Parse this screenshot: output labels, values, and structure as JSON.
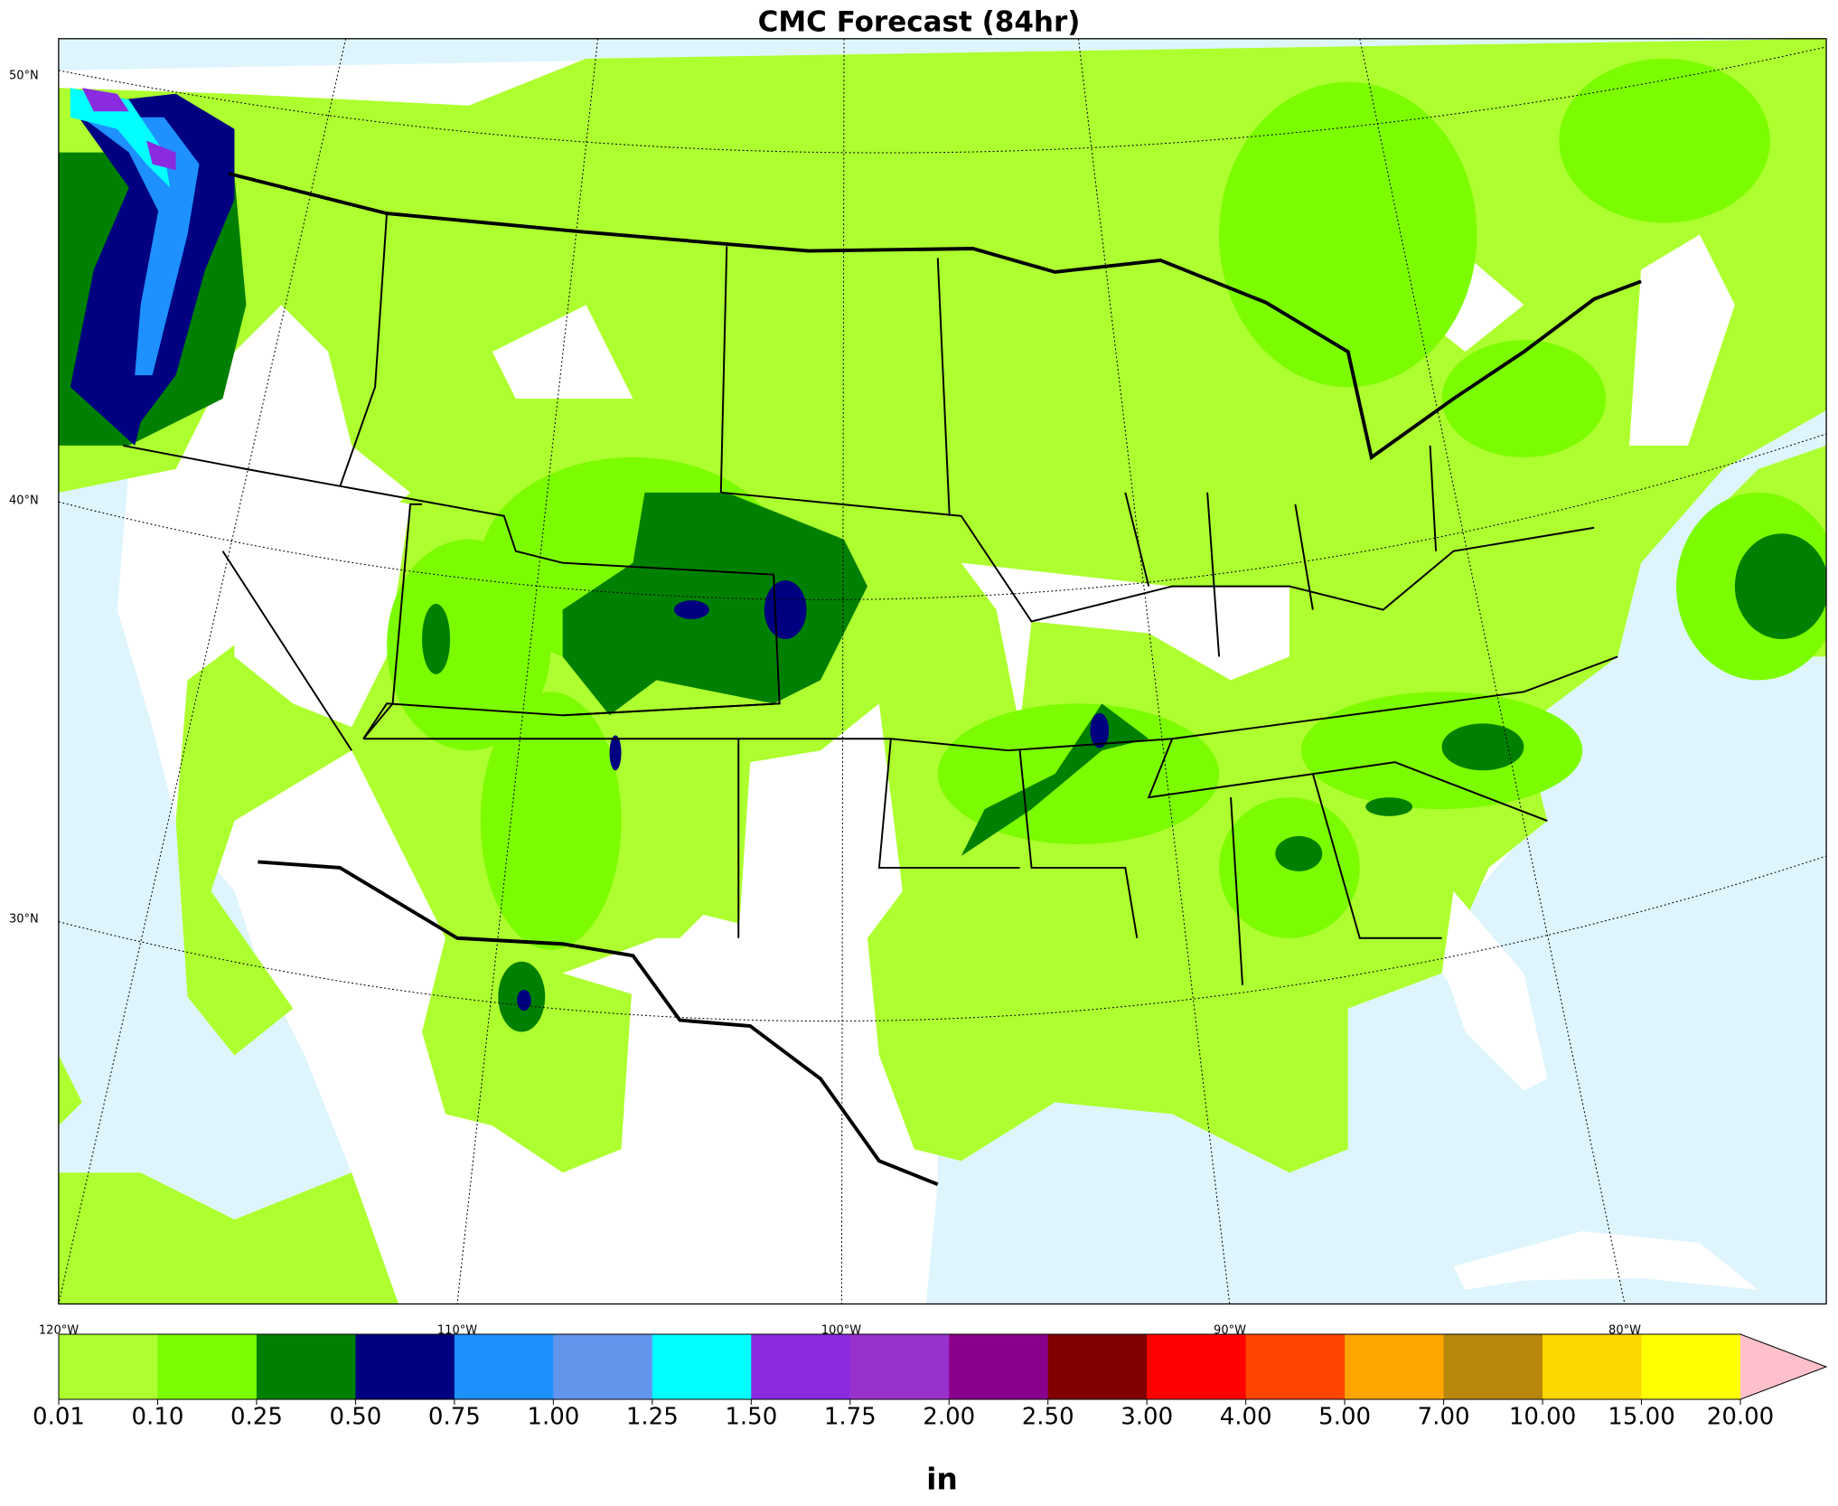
{
  "title": "CMC Forecast (84hr)",
  "lat_labels": [
    "50°N",
    "40°N",
    "30°N"
  ],
  "lon_labels": [
    "120°W",
    "110°W",
    "100°W",
    "90°W",
    "80°W"
  ],
  "colorbar": {
    "ticks": [
      "0.01",
      "0.10",
      "0.25",
      "0.50",
      "0.75",
      "1.00",
      "1.25",
      "1.50",
      "1.75",
      "2.00",
      "2.50",
      "3.00",
      "4.00",
      "5.00",
      "7.00",
      "10.00",
      "15.00",
      "20.00"
    ],
    "colors": [
      "#adff2f",
      "#7cfc00",
      "#008000",
      "#000080",
      "#1e90ff",
      "#6495ed",
      "#00ffff",
      "#8a2be2",
      "#9932cc",
      "#8b008b",
      "#800000",
      "#ff0000",
      "#ff4500",
      "#ffa500",
      "#b8860b",
      "#ffd700",
      "#ffff00"
    ],
    "extend_color": "#ffc0cb",
    "unit": "in"
  }
}
